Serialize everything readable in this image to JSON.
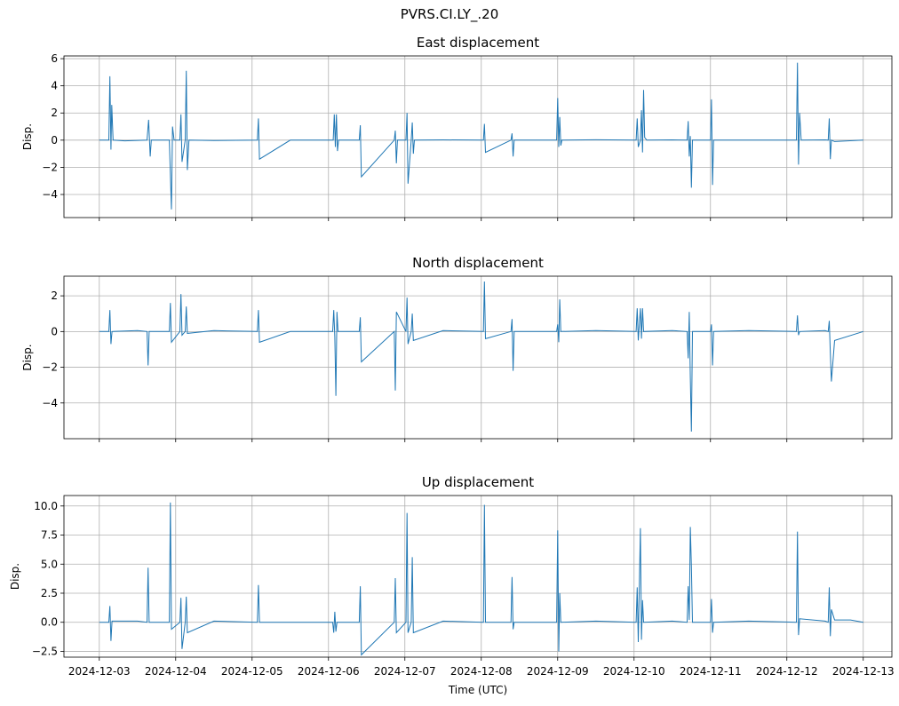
{
  "figure": {
    "suptitle": "PVRS.CI.LY_.20",
    "xlabel": "Time (UTC)"
  },
  "chart_data": [
    {
      "type": "line",
      "title": "East displacement",
      "ylabel": "Disp.",
      "xlim": [
        "2024-12-02T12:54",
        "2024-12-13T09:00"
      ],
      "ylim": [
        -5.7,
        6.2
      ],
      "yticks": [
        -4,
        -2,
        0,
        2,
        4,
        6
      ],
      "xticks": [
        "2024-12-03",
        "2024-12-04",
        "2024-12-05",
        "2024-12-06",
        "2024-12-07",
        "2024-12-08",
        "2024-12-09",
        "2024-12-10",
        "2024-12-11",
        "2024-12-12",
        "2024-12-13"
      ],
      "grid": true,
      "color": "#1f77b4",
      "series": [
        {
          "values_note": "",
          "t": [
            "2024-12-03T00:00",
            "2024-12-03T03:00",
            "2024-12-03T03:20",
            "2024-12-03T03:40",
            "2024-12-03T03:55",
            "2024-12-03T04:20",
            "2024-12-03T08:00",
            "2024-12-03T15:00",
            "2024-12-03T15:30",
            "2024-12-03T16:00",
            "2024-12-03T16:20",
            "2024-12-03T22:00",
            "2024-12-03T22:40",
            "2024-12-03T23:00",
            "2024-12-03T23:30",
            "2024-12-04T01:20",
            "2024-12-04T01:40",
            "2024-12-04T02:00",
            "2024-12-04T03:00",
            "2024-12-04T03:20",
            "2024-12-04T03:40",
            "2024-12-04T04:10",
            "2024-12-04T12:00",
            "2024-12-05T01:40",
            "2024-12-05T02:00",
            "2024-12-05T02:20",
            "2024-12-05T12:00",
            "2024-12-06T01:30",
            "2024-12-06T01:50",
            "2024-12-06T02:10",
            "2024-12-06T02:30",
            "2024-12-06T02:50",
            "2024-12-06T03:10",
            "2024-12-06T09:40",
            "2024-12-06T10:00",
            "2024-12-06T10:20",
            "2024-12-06T20:40",
            "2024-12-06T21:00",
            "2024-12-06T21:20",
            "2024-12-06T21:40",
            "2024-12-07T00:20",
            "2024-12-07T00:40",
            "2024-12-07T01:00",
            "2024-12-07T02:00",
            "2024-12-07T02:20",
            "2024-12-07T02:40",
            "2024-12-07T03:00",
            "2024-12-07T12:00",
            "2024-12-08T00:40",
            "2024-12-08T01:00",
            "2024-12-08T01:20",
            "2024-12-08T09:20",
            "2024-12-08T09:40",
            "2024-12-08T10:00",
            "2024-12-08T10:20",
            "2024-12-08T23:40",
            "2024-12-09T00:00",
            "2024-12-09T00:20",
            "2024-12-09T00:40",
            "2024-12-09T01:00",
            "2024-12-09T01:20",
            "2024-12-09T12:00",
            "2024-12-10T00:40",
            "2024-12-10T01:00",
            "2024-12-10T01:20",
            "2024-12-10T02:00",
            "2024-12-10T02:20",
            "2024-12-10T02:40",
            "2024-12-10T03:00",
            "2024-12-10T03:20",
            "2024-12-10T04:00",
            "2024-12-10T12:00",
            "2024-12-10T16:40",
            "2024-12-10T17:00",
            "2024-12-10T17:20",
            "2024-12-10T17:40",
            "2024-12-10T18:00",
            "2024-12-10T18:20",
            "2024-12-11T00:00",
            "2024-12-11T00:20",
            "2024-12-11T00:40",
            "2024-12-11T01:00",
            "2024-12-11T12:00",
            "2024-12-12T03:00",
            "2024-12-12T03:20",
            "2024-12-12T03:40",
            "2024-12-12T04:00",
            "2024-12-12T04:30",
            "2024-12-12T12:00",
            "2024-12-12T13:00",
            "2024-12-12T13:20",
            "2024-12-12T13:40",
            "2024-12-12T14:00",
            "2024-12-12T15:00",
            "2024-12-13T00:00"
          ],
          "y": [
            0.0,
            0.0,
            4.7,
            -0.7,
            2.6,
            0.0,
            -0.05,
            0.0,
            1.5,
            -1.2,
            0.0,
            0.0,
            -5.1,
            1.0,
            0.0,
            0.0,
            1.9,
            -1.6,
            0.0,
            5.1,
            -2.2,
            0.0,
            -0.03,
            0.0,
            1.6,
            -1.4,
            0.0,
            0.0,
            1.9,
            -0.5,
            1.9,
            -0.8,
            0.0,
            0.0,
            1.1,
            -2.7,
            0.0,
            0.7,
            -1.7,
            0.0,
            0.0,
            2.0,
            -3.2,
            0.0,
            1.3,
            -1.0,
            0.0,
            0.02,
            0.0,
            1.2,
            -0.9,
            0.0,
            0.5,
            -1.2,
            0.0,
            0.0,
            3.1,
            -0.5,
            1.7,
            -0.4,
            0.0,
            0.03,
            0.0,
            1.6,
            -0.5,
            0.0,
            2.2,
            -0.9,
            3.7,
            0.2,
            0.0,
            0.02,
            0.0,
            1.4,
            -1.2,
            0.3,
            -3.5,
            0.0,
            0.0,
            3.0,
            -3.3,
            0.0,
            0.0,
            0.0,
            5.7,
            -1.8,
            2.0,
            0.0,
            0.02,
            0.0,
            1.6,
            -1.4,
            0.0,
            -0.1,
            0.0
          ]
        }
      ]
    },
    {
      "type": "line",
      "title": "North displacement",
      "ylabel": "Disp.",
      "xlim": [
        "2024-12-02T12:54",
        "2024-12-13T09:00"
      ],
      "ylim": [
        -6.0,
        3.1
      ],
      "yticks": [
        -4,
        -2,
        0,
        2
      ],
      "xticks": [
        "2024-12-03",
        "2024-12-04",
        "2024-12-05",
        "2024-12-06",
        "2024-12-07",
        "2024-12-08",
        "2024-12-09",
        "2024-12-10",
        "2024-12-11",
        "2024-12-12",
        "2024-12-13"
      ],
      "grid": true,
      "color": "#1f77b4",
      "series": [
        {
          "t": [
            "2024-12-03T00:00",
            "2024-12-03T03:00",
            "2024-12-03T03:20",
            "2024-12-03T03:40",
            "2024-12-03T04:00",
            "2024-12-03T12:00",
            "2024-12-03T15:00",
            "2024-12-03T15:20",
            "2024-12-03T15:40",
            "2024-12-03T20:00",
            "2024-12-03T22:00",
            "2024-12-03T22:20",
            "2024-12-03T22:40",
            "2024-12-04T01:20",
            "2024-12-04T01:40",
            "2024-12-04T02:00",
            "2024-12-04T03:00",
            "2024-12-04T03:20",
            "2024-12-04T03:40",
            "2024-12-04T12:00",
            "2024-12-05T01:40",
            "2024-12-05T02:00",
            "2024-12-05T02:20",
            "2024-12-05T12:00",
            "2024-12-06T01:20",
            "2024-12-06T01:40",
            "2024-12-06T02:00",
            "2024-12-06T02:20",
            "2024-12-06T02:40",
            "2024-12-06T03:00",
            "2024-12-06T09:40",
            "2024-12-06T10:00",
            "2024-12-06T10:20",
            "2024-12-06T20:40",
            "2024-12-06T21:00",
            "2024-12-06T21:20",
            "2024-12-07T00:20",
            "2024-12-07T00:40",
            "2024-12-07T01:00",
            "2024-12-07T02:00",
            "2024-12-07T02:20",
            "2024-12-07T02:40",
            "2024-12-07T12:00",
            "2024-12-08T00:40",
            "2024-12-08T01:00",
            "2024-12-08T01:20",
            "2024-12-08T09:20",
            "2024-12-08T09:40",
            "2024-12-08T10:00",
            "2024-12-08T10:20",
            "2024-12-08T23:40",
            "2024-12-09T00:00",
            "2024-12-09T00:20",
            "2024-12-09T00:40",
            "2024-12-09T01:00",
            "2024-12-09T12:00",
            "2024-12-10T00:40",
            "2024-12-10T01:00",
            "2024-12-10T01:20",
            "2024-12-10T02:00",
            "2024-12-10T02:20",
            "2024-12-10T02:40",
            "2024-12-10T03:00",
            "2024-12-10T12:00",
            "2024-12-10T16:40",
            "2024-12-10T17:00",
            "2024-12-10T17:20",
            "2024-12-10T17:40",
            "2024-12-10T18:00",
            "2024-12-10T18:20",
            "2024-12-11T00:00",
            "2024-12-11T00:20",
            "2024-12-11T00:40",
            "2024-12-11T01:00",
            "2024-12-11T12:00",
            "2024-12-12T03:00",
            "2024-12-12T03:20",
            "2024-12-12T03:40",
            "2024-12-12T04:00",
            "2024-12-12T12:00",
            "2024-12-12T13:00",
            "2024-12-12T13:20",
            "2024-12-12T13:40",
            "2024-12-12T14:00",
            "2024-12-12T15:00",
            "2024-12-13T00:00"
          ],
          "y": [
            0.0,
            0.0,
            1.2,
            -0.7,
            0.0,
            0.05,
            0.0,
            -1.9,
            0.0,
            0.0,
            0.0,
            1.6,
            -0.6,
            0.0,
            2.1,
            -0.2,
            0.0,
            1.4,
            -0.1,
            0.05,
            0.0,
            1.2,
            -0.6,
            0.0,
            0.0,
            1.2,
            -0.3,
            -3.6,
            1.1,
            0.0,
            0.0,
            0.8,
            -1.7,
            0.0,
            -3.3,
            1.1,
            0.0,
            1.9,
            -0.7,
            0.0,
            1.0,
            -0.5,
            0.05,
            0.0,
            2.8,
            -0.4,
            0.0,
            0.7,
            -2.2,
            0.0,
            0.0,
            0.4,
            -0.6,
            1.8,
            0.0,
            0.05,
            0.0,
            1.3,
            -0.5,
            1.3,
            -0.4,
            1.3,
            0.0,
            0.05,
            0.0,
            -1.5,
            1.1,
            -2.6,
            -5.6,
            0.0,
            0.0,
            0.4,
            -1.9,
            0.0,
            0.05,
            0.0,
            0.9,
            -0.2,
            0.0,
            0.05,
            0.0,
            0.6,
            -1.2,
            -2.8,
            -0.5,
            0.0
          ]
        }
      ]
    },
    {
      "type": "line",
      "title": "Up displacement",
      "ylabel": "Disp.",
      "xlim": [
        "2024-12-02T12:54",
        "2024-12-13T09:00"
      ],
      "ylim": [
        -3.0,
        10.9
      ],
      "yticks": [
        -2.5,
        0.0,
        2.5,
        5.0,
        7.5,
        10.0
      ],
      "xticks": [
        "2024-12-03",
        "2024-12-04",
        "2024-12-05",
        "2024-12-06",
        "2024-12-07",
        "2024-12-08",
        "2024-12-09",
        "2024-12-10",
        "2024-12-11",
        "2024-12-12",
        "2024-12-13"
      ],
      "grid": true,
      "color": "#1f77b4",
      "series": [
        {
          "t": [
            "2024-12-03T00:00",
            "2024-12-03T03:00",
            "2024-12-03T03:20",
            "2024-12-03T03:40",
            "2024-12-03T04:00",
            "2024-12-03T12:00",
            "2024-12-03T15:00",
            "2024-12-03T15:20",
            "2024-12-03T15:40",
            "2024-12-03T22:00",
            "2024-12-03T22:20",
            "2024-12-03T22:40",
            "2024-12-04T01:20",
            "2024-12-04T01:40",
            "2024-12-04T02:00",
            "2024-12-04T03:00",
            "2024-12-04T03:20",
            "2024-12-04T03:40",
            "2024-12-04T12:00",
            "2024-12-05T01:40",
            "2024-12-05T02:00",
            "2024-12-05T02:20",
            "2024-12-05T12:00",
            "2024-12-06T01:20",
            "2024-12-06T01:40",
            "2024-12-06T02:00",
            "2024-12-06T02:20",
            "2024-12-06T02:40",
            "2024-12-06T09:40",
            "2024-12-06T10:00",
            "2024-12-06T10:20",
            "2024-12-06T20:40",
            "2024-12-06T21:00",
            "2024-12-06T21:20",
            "2024-12-07T00:20",
            "2024-12-07T00:40",
            "2024-12-07T01:00",
            "2024-12-07T02:00",
            "2024-12-07T02:20",
            "2024-12-07T02:40",
            "2024-12-07T12:00",
            "2024-12-08T00:40",
            "2024-12-08T01:00",
            "2024-12-08T01:20",
            "2024-12-08T09:20",
            "2024-12-08T09:40",
            "2024-12-08T10:00",
            "2024-12-08T10:20",
            "2024-12-08T23:40",
            "2024-12-09T00:00",
            "2024-12-09T00:20",
            "2024-12-09T00:40",
            "2024-12-09T01:00",
            "2024-12-09T12:00",
            "2024-12-10T00:40",
            "2024-12-10T01:00",
            "2024-12-10T01:20",
            "2024-12-10T02:00",
            "2024-12-10T02:20",
            "2024-12-10T02:40",
            "2024-12-10T03:00",
            "2024-12-10T12:00",
            "2024-12-10T16:40",
            "2024-12-10T17:00",
            "2024-12-10T17:20",
            "2024-12-10T17:40",
            "2024-12-10T18:00",
            "2024-12-10T18:20",
            "2024-12-11T00:00",
            "2024-12-11T00:20",
            "2024-12-11T00:40",
            "2024-12-11T01:00",
            "2024-12-11T12:00",
            "2024-12-12T03:00",
            "2024-12-12T03:20",
            "2024-12-12T03:40",
            "2024-12-12T04:00",
            "2024-12-12T12:00",
            "2024-12-12T13:00",
            "2024-12-12T13:20",
            "2024-12-12T13:40",
            "2024-12-12T14:00",
            "2024-12-12T15:00",
            "2024-12-12T20:00",
            "2024-12-13T00:00"
          ],
          "y": [
            0.0,
            0.0,
            1.4,
            -1.6,
            0.1,
            0.1,
            0.0,
            4.7,
            0.0,
            0.0,
            10.3,
            -0.6,
            0.0,
            2.1,
            -2.3,
            0.0,
            2.2,
            -0.9,
            0.1,
            0.0,
            3.2,
            0.0,
            0.0,
            0.0,
            -0.9,
            0.9,
            -0.8,
            0.0,
            0.0,
            3.1,
            -2.8,
            0.0,
            3.8,
            -0.9,
            0.0,
            9.4,
            -0.9,
            0.0,
            5.6,
            -0.9,
            0.1,
            0.0,
            10.1,
            0.0,
            0.0,
            3.9,
            -0.6,
            0.0,
            0.0,
            7.9,
            -2.5,
            2.5,
            0.0,
            0.1,
            0.0,
            3.0,
            -1.7,
            8.1,
            -1.5,
            1.9,
            0.0,
            0.1,
            0.0,
            3.1,
            0.2,
            8.2,
            4.8,
            0.0,
            0.0,
            2.0,
            -0.9,
            0.0,
            0.1,
            0.0,
            7.8,
            -1.1,
            0.3,
            0.1,
            0.0,
            3.0,
            -1.2,
            1.1,
            0.2,
            0.2,
            0.0
          ]
        }
      ]
    }
  ]
}
